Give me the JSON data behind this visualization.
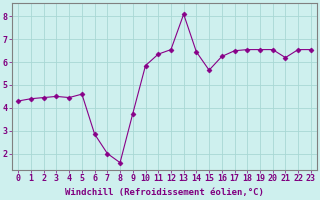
{
  "x": [
    0,
    1,
    2,
    3,
    4,
    5,
    6,
    7,
    8,
    9,
    10,
    11,
    12,
    13,
    14,
    15,
    16,
    17,
    18,
    19,
    20,
    21,
    22,
    23
  ],
  "y": [
    4.3,
    4.4,
    4.45,
    4.5,
    4.45,
    4.6,
    2.85,
    2.0,
    1.6,
    3.75,
    5.85,
    6.35,
    6.55,
    8.1,
    6.45,
    5.65,
    6.25,
    6.5,
    6.55,
    6.55,
    6.55,
    6.2,
    6.55,
    6.55
  ],
  "line_color": "#880088",
  "marker": "D",
  "marker_size": 2.5,
  "bg_color": "#cef0ee",
  "grid_color": "#a8d8d4",
  "ylabel_ticks": [
    2,
    3,
    4,
    5,
    6,
    7,
    8
  ],
  "xlabel": "Windchill (Refroidissement éolien,°C)",
  "xlabel_fontsize": 6.5,
  "tick_fontsize": 6,
  "ylim": [
    1.3,
    8.6
  ],
  "xlim": [
    -0.5,
    23.5
  ],
  "spine_color": "#808080",
  "label_color": "#800080"
}
